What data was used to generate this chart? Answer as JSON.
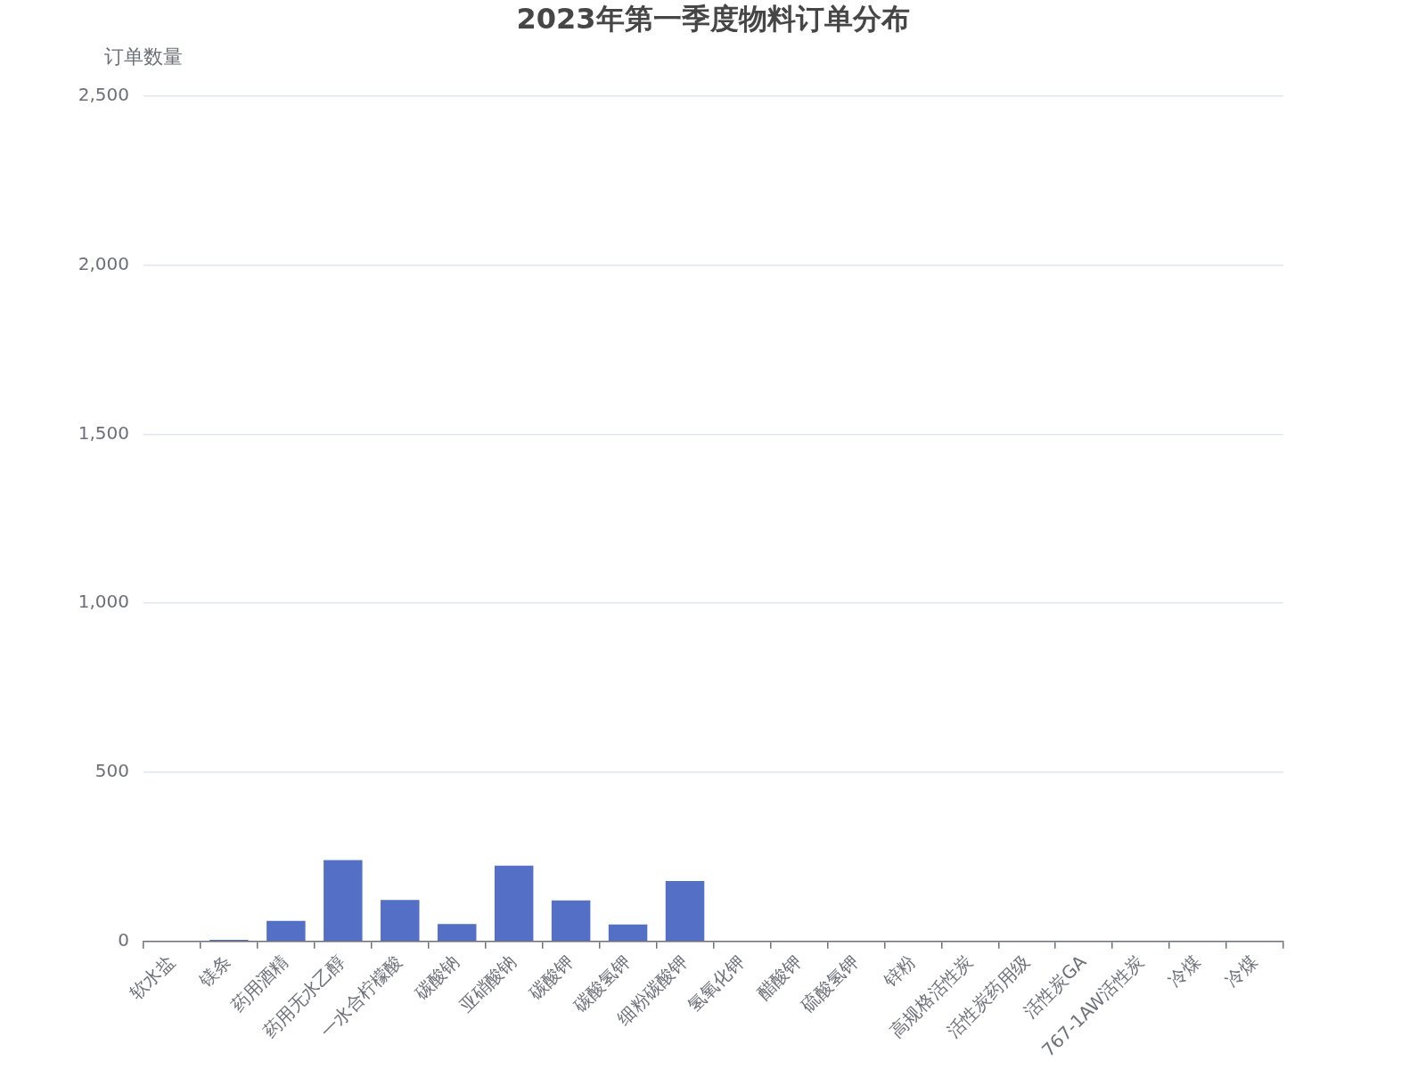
{
  "chart_data": {
    "type": "bar",
    "title": "2023年第一季度物料订单分布",
    "ylabel": "订单数量",
    "categories": [
      "软水盐",
      "镁条",
      "药用酒精",
      "药用无水乙醇",
      "一水合柠檬酸",
      "碳酸钠",
      "亚硝酸钠",
      "碳酸钾",
      "碳酸氢钾",
      "细粉碳酸钾",
      "氢氧化钾",
      "醋酸钾",
      "硫酸氢钾",
      "锌粉",
      "高规格活性炭",
      "活性炭药用级",
      "活性炭GA",
      "767-1AW活性炭",
      "冷煤",
      "冷煤"
    ],
    "values": [
      0,
      4,
      60,
      240,
      122,
      51,
      224,
      121,
      50,
      178,
      0,
      0,
      0,
      0,
      0,
      0,
      0,
      0,
      0,
      0
    ],
    "color": "#5470c6",
    "ylim": [
      0,
      2500
    ],
    "yticks": [
      0,
      500,
      {
        "value": 1000,
        "label": "1,000"
      },
      {
        "value": 1500,
        "label": "1,500"
      },
      {
        "value": 2000,
        "label": "2,000"
      },
      {
        "value": 2500,
        "label": "2,500"
      }
    ],
    "grid": "y"
  }
}
